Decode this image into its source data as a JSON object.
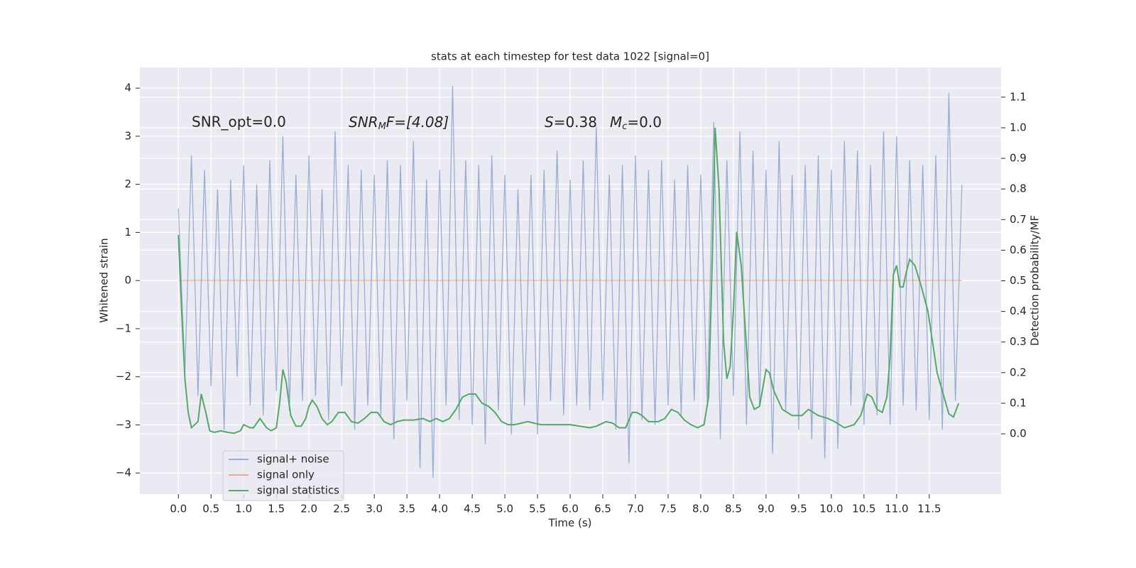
{
  "chart_data": {
    "type": "line",
    "title": "stats at each timestep for test data 1022 [signal=0]",
    "xlabel": "Time (s)",
    "ylabel": "Whitened strain",
    "y2label": "Detection probability/MF",
    "annotations": {
      "snr_opt": "SNR_opt=0.0",
      "snr_mf": {
        "var": "SNR",
        "sub": "M",
        "rest": "F=[4.08]"
      },
      "s": {
        "var": "S",
        "rest": "=0.38"
      },
      "mc": {
        "var": "M",
        "sub": "c",
        "rest": "=0.0"
      }
    },
    "xlim": [
      -0.59,
      12.6
    ],
    "ylim": [
      -4.44,
      4.43
    ],
    "y2lim": [
      -0.197,
      1.197
    ],
    "xticks": [
      {
        "value": 0,
        "label": "0.0"
      },
      0.5,
      {
        "value": 1,
        "label": "1.0"
      },
      1.5,
      {
        "value": 2,
        "label": "2.0"
      },
      2.5,
      {
        "value": 3,
        "label": "3.0"
      },
      3.5,
      {
        "value": 4,
        "label": "4.0"
      },
      4.5,
      {
        "value": 5,
        "label": "5.0"
      },
      5.5,
      {
        "value": 6,
        "label": "6.0"
      },
      6.5,
      {
        "value": 7,
        "label": "7.0"
      },
      7.5,
      {
        "value": 8,
        "label": "8.0"
      },
      8.5,
      {
        "value": 9,
        "label": "9.0"
      },
      9.5,
      {
        "value": 10,
        "label": "10.0"
      },
      10.5,
      {
        "value": 11,
        "label": "11.0"
      },
      11.5
    ],
    "yticks": [
      {
        "value": -4,
        "label": "−4"
      },
      {
        "value": -3,
        "label": "−3"
      },
      {
        "value": -2,
        "label": "−2"
      },
      {
        "value": -1,
        "label": "−1"
      },
      0,
      1,
      2,
      3,
      4
    ],
    "y2ticks": [
      {
        "value": 0,
        "label": "0.0"
      },
      0.1,
      0.2,
      0.3,
      0.4,
      0.5,
      0.6,
      0.7,
      0.8,
      0.9,
      {
        "value": 1,
        "label": "1.0"
      },
      1.1
    ],
    "grid": true,
    "legend": "lower left",
    "series": [
      {
        "name": "signal+ noise",
        "color": "#4c72b0",
        "opacity": 0.5,
        "x": [
          0,
          0.1,
          0.2,
          0.3,
          0.4,
          0.5,
          0.6,
          0.7,
          0.8,
          0.9,
          1,
          1.1,
          1.2,
          1.3,
          1.4,
          1.5,
          1.6,
          1.7,
          1.8,
          1.9,
          2,
          2.1,
          2.2,
          2.3,
          2.4,
          2.5,
          2.6,
          2.7,
          2.8,
          2.9,
          3,
          3.1,
          3.2,
          3.3,
          3.4,
          3.5,
          3.6,
          3.7,
          3.8,
          3.9,
          4,
          4.1,
          4.2,
          4.3,
          4.4,
          4.5,
          4.6,
          4.7,
          4.8,
          4.9,
          5,
          5.1,
          5.2,
          5.3,
          5.4,
          5.5,
          5.6,
          5.7,
          5.8,
          5.9,
          6,
          6.1,
          6.2,
          6.3,
          6.4,
          6.5,
          6.6,
          6.7,
          6.8,
          6.9,
          7,
          7.1,
          7.2,
          7.3,
          7.4,
          7.5,
          7.6,
          7.7,
          7.8,
          7.9,
          8,
          8.1,
          8.2,
          8.3,
          8.4,
          8.5,
          8.6,
          8.7,
          8.8,
          8.9,
          9,
          9.1,
          9.2,
          9.3,
          9.4,
          9.5,
          9.6,
          9.7,
          9.8,
          9.9,
          10,
          10.1,
          10.2,
          10.3,
          10.4,
          10.5,
          10.6,
          10.7,
          10.8,
          10.9,
          11,
          11.1,
          11.2,
          11.3,
          11.4,
          11.5,
          11.6,
          11.7,
          11.8,
          11.9,
          12
        ],
        "values": [
          1.5,
          -1.9,
          2.6,
          -2.4,
          2.3,
          -2.2,
          1.9,
          -3.1,
          2.1,
          -2.0,
          2.4,
          -2.6,
          2.0,
          -2.8,
          2.5,
          -2.3,
          3.0,
          -2.7,
          2.2,
          -2.5,
          2.6,
          -2.4,
          1.9,
          -2.9,
          3.1,
          -2.2,
          2.4,
          -3.1,
          2.3,
          -2.6,
          2.2,
          -2.8,
          2.5,
          -3.3,
          2.4,
          -2.5,
          2.9,
          -3.9,
          2.1,
          -4.1,
          2.3,
          -2.6,
          4.05,
          -2.9,
          2.5,
          -3.0,
          2.4,
          -3.4,
          2.6,
          -2.7,
          2.2,
          -3.2,
          1.9,
          -2.6,
          2.2,
          -3.2,
          2.3,
          -2.5,
          2.7,
          -2.8,
          2.1,
          -2.6,
          2.5,
          -2.7,
          3.2,
          -2.5,
          2.2,
          -3.1,
          2.4,
          -3.8,
          2.6,
          -2.9,
          2.3,
          -3.0,
          2.5,
          -2.6,
          2.1,
          -2.8,
          2.4,
          -2.5,
          2.2,
          -2.6,
          3.3,
          -3.3,
          2.5,
          -2.4,
          3.1,
          -3.0,
          2.7,
          -2.6,
          2.3,
          -3.6,
          2.9,
          -2.7,
          2.2,
          -3.1,
          2.4,
          -3.3,
          2.6,
          -3.7,
          2.3,
          -3.5,
          2.9,
          -2.6,
          2.7,
          -3.0,
          2.4,
          -2.8,
          3.1,
          -3.0,
          3.0,
          -2.6,
          2.5,
          -2.7,
          2.4,
          -2.9,
          2.6,
          -3.1,
          3.9,
          -2.5,
          2.0
        ]
      },
      {
        "name": "signal only",
        "color": "#dd8452",
        "opacity": 0.6,
        "x": [
          0,
          12
        ],
        "values": [
          0,
          0
        ]
      },
      {
        "name": "signal statistics",
        "color": "#55a868",
        "opacity": 1,
        "axis": "y2",
        "x": [
          0,
          0.05,
          0.1,
          0.15,
          0.2,
          0.3,
          0.35,
          0.42,
          0.48,
          0.55,
          0.65,
          0.75,
          0.85,
          0.95,
          1,
          1.1,
          1.15,
          1.25,
          1.35,
          1.42,
          1.5,
          1.55,
          1.6,
          1.65,
          1.72,
          1.8,
          1.88,
          1.95,
          2,
          2.05,
          2.12,
          2.2,
          2.28,
          2.35,
          2.45,
          2.55,
          2.65,
          2.75,
          2.85,
          2.95,
          3.05,
          3.15,
          3.25,
          3.35,
          3.45,
          3.6,
          3.75,
          3.85,
          3.95,
          4.05,
          4.15,
          4.25,
          4.35,
          4.45,
          4.55,
          4.65,
          4.75,
          4.85,
          4.95,
          5.05,
          5.15,
          5.25,
          5.35,
          5.45,
          5.55,
          5.7,
          5.85,
          6,
          6.15,
          6.3,
          6.4,
          6.55,
          6.65,
          6.75,
          6.85,
          6.95,
          7.02,
          7.1,
          7.2,
          7.35,
          7.45,
          7.55,
          7.65,
          7.75,
          7.85,
          7.95,
          8.05,
          8.12,
          8.18,
          8.22,
          8.28,
          8.35,
          8.4,
          8.45,
          8.5,
          8.55,
          8.62,
          8.68,
          8.75,
          8.82,
          8.9,
          9,
          9.05,
          9.12,
          9.25,
          9.4,
          9.55,
          9.65,
          9.8,
          9.95,
          10.05,
          10.2,
          10.35,
          10.45,
          10.55,
          10.62,
          10.7,
          10.78,
          10.85,
          10.9,
          10.95,
          11,
          11.05,
          11.1,
          11.15,
          11.2,
          11.28,
          11.38,
          11.48,
          11.55,
          11.62,
          11.7,
          11.8,
          11.87,
          11.95
        ],
        "values": [
          0.65,
          0.4,
          0.18,
          0.07,
          0.02,
          0.04,
          0.13,
          0.07,
          0.01,
          0.005,
          0.01,
          0.005,
          0.002,
          0.01,
          0.03,
          0.02,
          0.02,
          0.05,
          0.02,
          0.01,
          0.02,
          0.1,
          0.21,
          0.17,
          0.06,
          0.025,
          0.025,
          0.05,
          0.09,
          0.11,
          0.09,
          0.05,
          0.03,
          0.04,
          0.07,
          0.07,
          0.04,
          0.035,
          0.05,
          0.07,
          0.07,
          0.04,
          0.03,
          0.04,
          0.045,
          0.045,
          0.05,
          0.04,
          0.05,
          0.04,
          0.05,
          0.08,
          0.12,
          0.13,
          0.13,
          0.1,
          0.09,
          0.07,
          0.04,
          0.03,
          0.03,
          0.035,
          0.04,
          0.035,
          0.03,
          0.03,
          0.03,
          0.03,
          0.025,
          0.02,
          0.025,
          0.04,
          0.035,
          0.02,
          0.02,
          0.07,
          0.07,
          0.06,
          0.04,
          0.04,
          0.05,
          0.08,
          0.07,
          0.045,
          0.03,
          0.02,
          0.03,
          0.12,
          0.6,
          1.0,
          0.8,
          0.3,
          0.18,
          0.22,
          0.4,
          0.66,
          0.55,
          0.35,
          0.12,
          0.08,
          0.09,
          0.21,
          0.2,
          0.14,
          0.08,
          0.06,
          0.06,
          0.08,
          0.06,
          0.05,
          0.04,
          0.02,
          0.03,
          0.06,
          0.13,
          0.12,
          0.08,
          0.07,
          0.12,
          0.25,
          0.52,
          0.55,
          0.48,
          0.48,
          0.53,
          0.57,
          0.55,
          0.48,
          0.4,
          0.3,
          0.2,
          0.14,
          0.065,
          0.055,
          0.1
        ]
      }
    ]
  }
}
